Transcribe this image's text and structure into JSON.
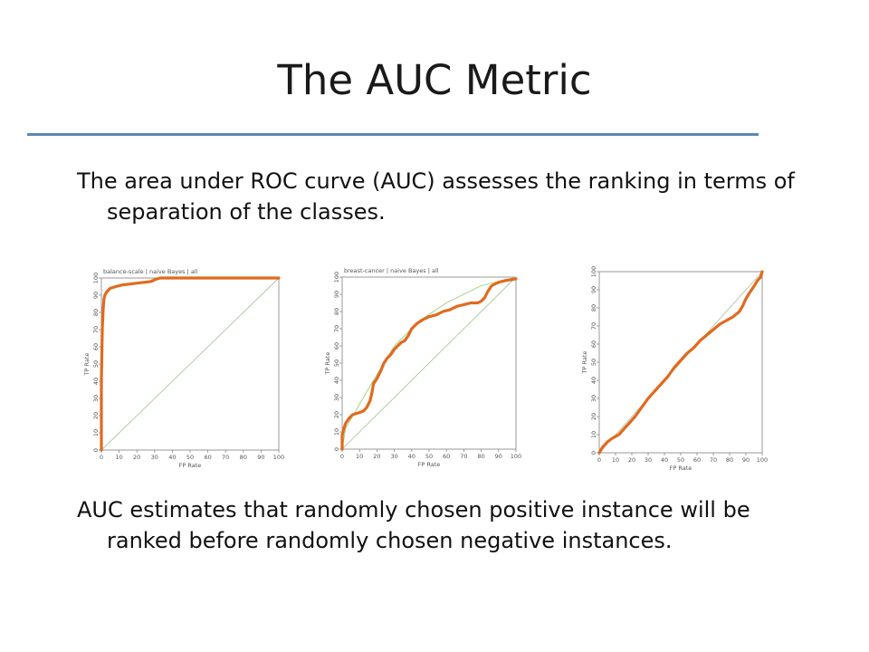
{
  "slide": {
    "title": "The AUC Metric",
    "para1_line1": "The area under ROC curve (AUC) assesses the ranking in terms of",
    "para1_line2": "separation of the classes.",
    "para2_line1": "AUC estimates that randomly chosen positive instance will be",
    "para2_line2": "ranked before randomly chosen negative instances.",
    "rule_color": "#5b86b8"
  },
  "chart_data": [
    {
      "type": "line",
      "title": "balance-scale | naive Bayes | all",
      "xlabel": "FP Rate",
      "ylabel": "TP Rate",
      "xlim": [
        0,
        100
      ],
      "ylim": [
        0,
        100
      ],
      "xticks": [
        0,
        10,
        20,
        30,
        40,
        50,
        60,
        70,
        80,
        90,
        100
      ],
      "yticks": [
        0,
        10,
        20,
        30,
        40,
        50,
        60,
        70,
        80,
        90,
        100
      ],
      "series": [
        {
          "role": "diagonal",
          "color": "#a8c8a0",
          "x": [
            0,
            100
          ],
          "y": [
            0,
            100
          ]
        },
        {
          "role": "roc",
          "color": "#e06a1e",
          "x": [
            0,
            0,
            0.5,
            1,
            1.5,
            2,
            3,
            5,
            8,
            12,
            16,
            20,
            24,
            28,
            30,
            33,
            40,
            60,
            80,
            100
          ],
          "y": [
            0,
            40,
            70,
            82,
            88,
            90,
            92,
            94,
            95,
            96,
            96.5,
            97,
            97.5,
            98,
            99,
            100,
            100,
            100,
            100,
            100
          ]
        }
      ]
    },
    {
      "type": "line",
      "title": "breast-cancer | naive Bayes | all",
      "xlabel": "FP Rate",
      "ylabel": "TP Rate",
      "xlim": [
        0,
        100
      ],
      "ylim": [
        0,
        100
      ],
      "xticks": [
        0,
        10,
        20,
        30,
        40,
        50,
        60,
        70,
        80,
        90,
        100
      ],
      "yticks": [
        0,
        10,
        20,
        30,
        40,
        50,
        60,
        70,
        80,
        90,
        100
      ],
      "series": [
        {
          "role": "diagonal",
          "color": "#a8c8a0",
          "x": [
            0,
            100
          ],
          "y": [
            0,
            100
          ]
        },
        {
          "role": "convex-hull",
          "color": "#9ad07a",
          "x": [
            0,
            2,
            15,
            30,
            45,
            60,
            80,
            100
          ],
          "y": [
            0,
            12,
            35,
            60,
            75,
            85,
            95,
            100
          ]
        },
        {
          "role": "roc",
          "color": "#e06a1e",
          "x": [
            0,
            0,
            1,
            2,
            4,
            6,
            9,
            12,
            14,
            16,
            17,
            18,
            20,
            22,
            24,
            26,
            28,
            30,
            32,
            34,
            36,
            38,
            40,
            43,
            46,
            50,
            54,
            58,
            62,
            66,
            70,
            74,
            78,
            80,
            82,
            84,
            86,
            90,
            94,
            100
          ],
          "y": [
            0,
            8,
            12,
            15,
            18,
            20,
            21,
            22,
            24,
            28,
            32,
            38,
            41,
            45,
            50,
            53,
            55,
            58,
            60,
            62,
            63,
            66,
            70,
            73,
            75,
            77,
            78,
            80,
            81,
            83,
            84,
            85,
            85,
            86,
            88,
            92,
            95,
            97,
            98,
            99
          ]
        }
      ]
    },
    {
      "type": "line",
      "title": "",
      "xlabel": "FP Rate",
      "ylabel": "TP Rate",
      "xlim": [
        0,
        100
      ],
      "ylim": [
        0,
        100
      ],
      "xticks": [
        0,
        10,
        20,
        30,
        40,
        50,
        60,
        70,
        80,
        90,
        100
      ],
      "yticks": [
        0,
        10,
        20,
        30,
        40,
        50,
        60,
        70,
        80,
        90,
        100
      ],
      "series": [
        {
          "role": "diagonal",
          "color": "#a8c8a0",
          "x": [
            0,
            100
          ],
          "y": [
            0,
            100
          ]
        },
        {
          "role": "roc",
          "color": "#e06a1e",
          "x": [
            0,
            2,
            5,
            8,
            12,
            15,
            18,
            22,
            26,
            30,
            34,
            38,
            42,
            46,
            50,
            54,
            58,
            62,
            66,
            70,
            74,
            78,
            82,
            86,
            88,
            90,
            92,
            95,
            97,
            99,
            100
          ],
          "y": [
            0,
            3,
            6,
            8,
            10,
            13,
            16,
            20,
            25,
            30,
            34,
            38,
            42,
            47,
            51,
            55,
            58,
            62,
            65,
            68,
            71,
            73,
            75,
            78,
            81,
            85,
            88,
            92,
            95,
            97,
            100
          ]
        }
      ]
    }
  ]
}
